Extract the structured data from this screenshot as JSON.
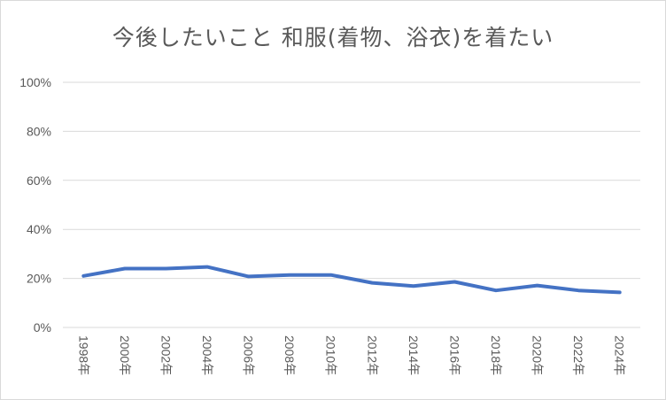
{
  "chart_data": {
    "type": "line",
    "title": "今後したいこと 和服(着物、浴衣)を着たい",
    "categories": [
      "1998年",
      "2000年",
      "2002年",
      "2004年",
      "2006年",
      "2008年",
      "2010年",
      "2012年",
      "2014年",
      "2016年",
      "2018年",
      "2020年",
      "2022年",
      "2024年"
    ],
    "series": [
      {
        "values": [
          21,
          24,
          24,
          24.7,
          20.8,
          21.4,
          21.4,
          18.2,
          16.9,
          18.6,
          15.1,
          17.1,
          15.1,
          14.3
        ]
      }
    ],
    "y_ticks": [
      "0%",
      "20%",
      "40%",
      "60%",
      "80%",
      "100%"
    ],
    "ylim": [
      0,
      100
    ],
    "grid": true,
    "legend": "none",
    "colors": {
      "line": "#4472c4",
      "grid": "#d9d9d9",
      "text": "#595959"
    }
  }
}
